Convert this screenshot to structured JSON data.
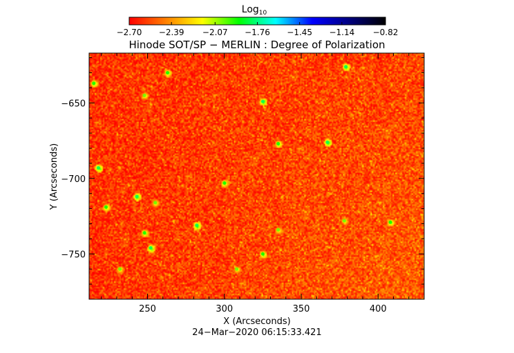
{
  "chart_data": {
    "type": "heatmap",
    "title": "Hinode SOT/SP − MERLIN : Degree of Polarization",
    "xlabel": "X (Arcseconds)",
    "ylabel": "Y (Arcseconds)",
    "timestamp": "24−Mar−2020 06:15:33.421",
    "xlim": [
      212,
      430
    ],
    "ylim": [
      -780,
      -617
    ],
    "x_ticks": [
      250,
      300,
      350,
      400
    ],
    "x_tick_labels": [
      "250",
      "300",
      "350",
      "400"
    ],
    "y_ticks": [
      -650,
      -700,
      -750
    ],
    "y_tick_labels": [
      "−650",
      "−700",
      "−750"
    ],
    "colorbar": {
      "label_base": "Log",
      "label_sub": "10",
      "range": [
        -2.7,
        -0.82
      ],
      "ticks": [
        -2.7,
        -2.39,
        -2.07,
        -1.76,
        -1.45,
        -1.14,
        -0.82
      ],
      "tick_labels": [
        "−2.70",
        "−2.39",
        "−2.07",
        "−1.76",
        "−1.45",
        "−1.14",
        "−0.82"
      ],
      "colors": [
        "#ff0000",
        "#ff8000",
        "#ffff00",
        "#00ff00",
        "#00ffff",
        "#0000ff",
        "#000080",
        "#000000"
      ]
    },
    "background_level": -2.6,
    "features": [
      {
        "x": 379,
        "y": -626,
        "level": -1.8
      },
      {
        "x": 263,
        "y": -630,
        "level": -1.9
      },
      {
        "x": 215,
        "y": -637,
        "level": -1.9
      },
      {
        "x": 248,
        "y": -645,
        "level": -2.0
      },
      {
        "x": 325,
        "y": -649,
        "level": -1.8
      },
      {
        "x": 367,
        "y": -676,
        "level": -1.8
      },
      {
        "x": 335,
        "y": -677,
        "level": -1.9
      },
      {
        "x": 218,
        "y": -693,
        "level": -1.8
      },
      {
        "x": 300,
        "y": -703,
        "level": -1.9
      },
      {
        "x": 243,
        "y": -712,
        "level": -1.8
      },
      {
        "x": 255,
        "y": -716,
        "level": -2.0
      },
      {
        "x": 223,
        "y": -719,
        "level": -1.9
      },
      {
        "x": 282,
        "y": -731,
        "level": -1.8
      },
      {
        "x": 248,
        "y": -736,
        "level": -1.9
      },
      {
        "x": 408,
        "y": -729,
        "level": -1.9
      },
      {
        "x": 378,
        "y": -728,
        "level": -2.0
      },
      {
        "x": 252,
        "y": -746,
        "level": -1.8
      },
      {
        "x": 335,
        "y": -734,
        "level": -2.0
      },
      {
        "x": 325,
        "y": -750,
        "level": -1.9
      },
      {
        "x": 308,
        "y": -760,
        "level": -2.0
      },
      {
        "x": 232,
        "y": -760,
        "level": -2.0
      }
    ],
    "grid": false,
    "legend": "colorbar-top"
  }
}
